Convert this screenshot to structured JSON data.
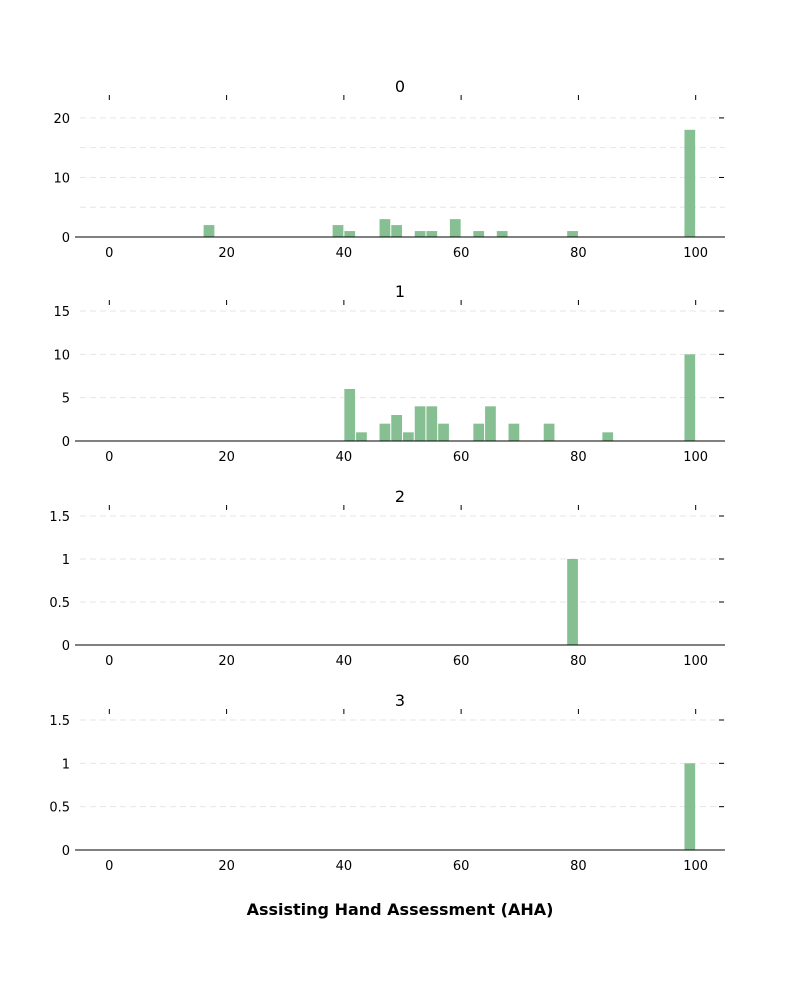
{
  "xlabel": "Assisting Hand Assessment (AHA)",
  "bar_color": "#86bf91",
  "chart_data": [
    {
      "type": "bar",
      "title": "0",
      "xlim": [
        -5,
        105
      ],
      "ylim": [
        0,
        22
      ],
      "xticks": [
        0,
        20,
        40,
        60,
        80,
        100
      ],
      "yticks": [
        0,
        10,
        20
      ],
      "ytick_labels": [
        "0",
        "10",
        "20"
      ],
      "grid_y": [
        0,
        5,
        10,
        15,
        20
      ],
      "bin_width": 2,
      "bars": [
        {
          "x": 16,
          "value": 2
        },
        {
          "x": 38,
          "value": 2
        },
        {
          "x": 40,
          "value": 1
        },
        {
          "x": 46,
          "value": 3
        },
        {
          "x": 48,
          "value": 2
        },
        {
          "x": 52,
          "value": 1
        },
        {
          "x": 54,
          "value": 1
        },
        {
          "x": 58,
          "value": 3
        },
        {
          "x": 62,
          "value": 1
        },
        {
          "x": 66,
          "value": 1
        },
        {
          "x": 78,
          "value": 1
        },
        {
          "x": 98,
          "value": 18
        }
      ]
    },
    {
      "type": "bar",
      "title": "1",
      "xlim": [
        -5,
        105
      ],
      "ylim": [
        0,
        15
      ],
      "xticks": [
        0,
        20,
        40,
        60,
        80,
        100
      ],
      "yticks": [
        0,
        5,
        10,
        15
      ],
      "ytick_labels": [
        "0",
        "5",
        "10",
        "15"
      ],
      "grid_y": [
        0,
        5,
        10,
        15
      ],
      "bin_width": 2,
      "bars": [
        {
          "x": 40,
          "value": 6
        },
        {
          "x": 42,
          "value": 1
        },
        {
          "x": 46,
          "value": 2
        },
        {
          "x": 48,
          "value": 3
        },
        {
          "x": 50,
          "value": 1
        },
        {
          "x": 52,
          "value": 4
        },
        {
          "x": 54,
          "value": 4
        },
        {
          "x": 56,
          "value": 2
        },
        {
          "x": 62,
          "value": 2
        },
        {
          "x": 64,
          "value": 4
        },
        {
          "x": 68,
          "value": 2
        },
        {
          "x": 74,
          "value": 2
        },
        {
          "x": 84,
          "value": 1
        },
        {
          "x": 98,
          "value": 10
        }
      ]
    },
    {
      "type": "bar",
      "title": "2",
      "xlim": [
        -5,
        105
      ],
      "ylim": [
        0,
        1.5
      ],
      "xticks": [
        0,
        20,
        40,
        60,
        80,
        100
      ],
      "yticks": [
        0,
        0.5,
        1,
        1.5
      ],
      "ytick_labels": [
        "0",
        "0.5",
        "1",
        "1.5"
      ],
      "grid_y": [
        0,
        0.5,
        1,
        1.5
      ],
      "bin_width": 2,
      "bars": [
        {
          "x": 78,
          "value": 1
        }
      ]
    },
    {
      "type": "bar",
      "title": "3",
      "xlim": [
        -5,
        105
      ],
      "ylim": [
        0,
        1.5
      ],
      "xticks": [
        0,
        20,
        40,
        60,
        80,
        100
      ],
      "yticks": [
        0,
        0.5,
        1,
        1.5
      ],
      "ytick_labels": [
        "0",
        "0.5",
        "1",
        "1.5"
      ],
      "grid_y": [
        0,
        0.5,
        1,
        1.5
      ],
      "bin_width": 2,
      "bars": [
        {
          "x": 98,
          "value": 1
        }
      ]
    }
  ]
}
